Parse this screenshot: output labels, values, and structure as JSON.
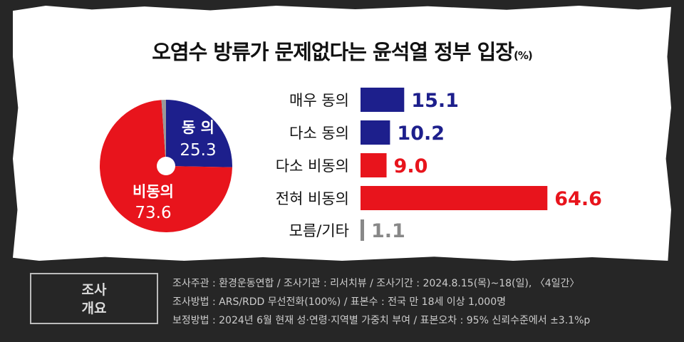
{
  "title": "오염수 방류가 문제없다는 윤석열 정부 입장",
  "title_unit": "(%)",
  "chart_data": [
    {
      "type": "pie",
      "slices": [
        {
          "label": "동 의",
          "value": 25.3,
          "color": "#1d1f8c"
        },
        {
          "label": "비동의",
          "value": 73.6,
          "color": "#e8141c"
        },
        {
          "label": "",
          "value": 1.1,
          "color": "#999999"
        }
      ]
    },
    {
      "type": "bar",
      "orientation": "horizontal",
      "categories": [
        "매우 동의",
        "다소 동의",
        "다소 비동의",
        "전혀 비동의",
        "모름/기타"
      ],
      "values": [
        15.1,
        10.2,
        9.0,
        64.6,
        1.1
      ],
      "colors": [
        "#1d1f8c",
        "#1d1f8c",
        "#e8141c",
        "#e8141c",
        "#888888"
      ]
    }
  ],
  "footer": {
    "box_line1": "조사",
    "box_line2": "개요",
    "lines": [
      "조사주관 : 환경운동연합 / 조사기관 : 리서치뷰 / 조사기간 : 2024.8.15(목)~18(일), 〈4일간〉",
      "조사방법 : ARS/RDD 무선전화(100%) / 표본수 : 전국 만 18세 이상 1,000명",
      "보정방법 : 2024년 6월 현재 성·연령·지역별 가중치 부여 / 표본오차 : 95% 신뢰수준에서 ±3.1%p"
    ]
  }
}
